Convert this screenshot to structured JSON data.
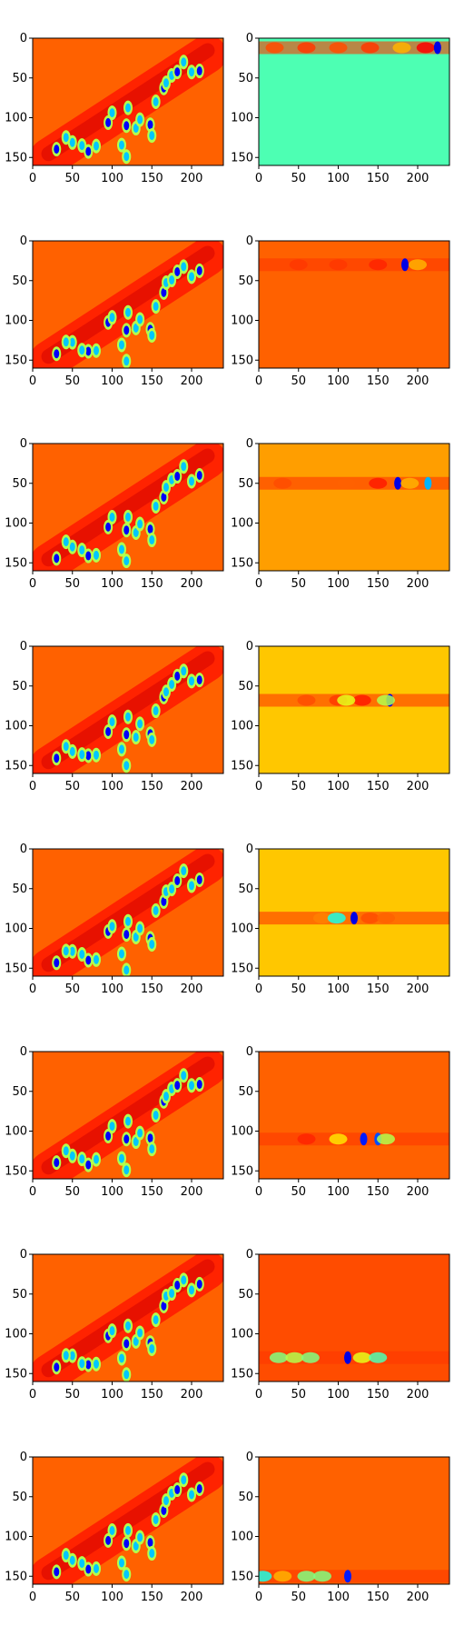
{
  "chart_data": {
    "type": "heatmap",
    "colormap": "jet",
    "layout": {
      "rows": 8,
      "cols": 2
    },
    "xlim": [
      0,
      240
    ],
    "ylim": [
      160,
      0
    ],
    "xticks": [
      "0",
      "50",
      "100",
      "150",
      "200"
    ],
    "yticks": [
      "0",
      "50",
      "100",
      "150"
    ],
    "left_background": 0.78,
    "blobs": [
      [
        30,
        142
      ],
      [
        50,
        130
      ],
      [
        42,
        126
      ],
      [
        70,
        140
      ],
      [
        62,
        135
      ],
      [
        80,
        138
      ],
      [
        95,
        105
      ],
      [
        100,
        95
      ],
      [
        112,
        132
      ],
      [
        118,
        110
      ],
      [
        120,
        90
      ],
      [
        130,
        112
      ],
      [
        148,
        110
      ],
      [
        150,
        120
      ],
      [
        155,
        80
      ],
      [
        165,
        65
      ],
      [
        168,
        55
      ],
      [
        175,
        48
      ],
      [
        182,
        40
      ],
      [
        190,
        30
      ],
      [
        200,
        45
      ],
      [
        210,
        40
      ],
      [
        118,
        150
      ],
      [
        135,
        100
      ]
    ],
    "right_panels": [
      {
        "row": 0,
        "band_y": 12,
        "bg": 0.45,
        "band": [
          [
            20,
            0.8
          ],
          [
            60,
            0.82
          ],
          [
            100,
            0.8
          ],
          [
            140,
            0.82
          ],
          [
            180,
            0.7
          ],
          [
            210,
            0.88
          ],
          [
            225,
            0.1
          ]
        ]
      },
      {
        "row": 1,
        "band_y": 30,
        "bg": 0.78,
        "band": [
          [
            50,
            0.82
          ],
          [
            100,
            0.82
          ],
          [
            150,
            0.84
          ],
          [
            184,
            0.1
          ],
          [
            200,
            0.7
          ]
        ]
      },
      {
        "row": 2,
        "band_y": 50,
        "bg": 0.72,
        "band": [
          [
            30,
            0.8
          ],
          [
            110,
            0.78
          ],
          [
            150,
            0.85
          ],
          [
            175,
            0.1
          ],
          [
            190,
            0.7
          ],
          [
            213,
            0.3
          ]
        ]
      },
      {
        "row": 3,
        "band_y": 68,
        "bg": 0.68,
        "band": [
          [
            60,
            0.8
          ],
          [
            100,
            0.82
          ],
          [
            130,
            0.85
          ],
          [
            165,
            0.1
          ],
          [
            160,
            0.55
          ],
          [
            110,
            0.6
          ]
        ]
      },
      {
        "row": 4,
        "band_y": 87,
        "bg": 0.68,
        "band": [
          [
            80,
            0.75
          ],
          [
            98,
            0.4
          ],
          [
            120,
            0.1
          ],
          [
            140,
            0.8
          ],
          [
            160,
            0.78
          ]
        ]
      },
      {
        "row": 5,
        "band_y": 110,
        "bg": 0.78,
        "band": [
          [
            60,
            0.84
          ],
          [
            100,
            0.65
          ],
          [
            132,
            0.15
          ],
          [
            150,
            0.2
          ],
          [
            160,
            0.55
          ]
        ]
      },
      {
        "row": 6,
        "band_y": 130,
        "bg": 0.8,
        "band": [
          [
            25,
            0.5
          ],
          [
            45,
            0.55
          ],
          [
            65,
            0.5
          ],
          [
            112,
            0.1
          ],
          [
            130,
            0.6
          ],
          [
            150,
            0.45
          ]
        ]
      },
      {
        "row": 7,
        "band_y": 150,
        "bg": 0.78,
        "band": [
          [
            5,
            0.4
          ],
          [
            30,
            0.7
          ],
          [
            60,
            0.5
          ],
          [
            80,
            0.5
          ],
          [
            112,
            0.15
          ]
        ]
      }
    ]
  }
}
